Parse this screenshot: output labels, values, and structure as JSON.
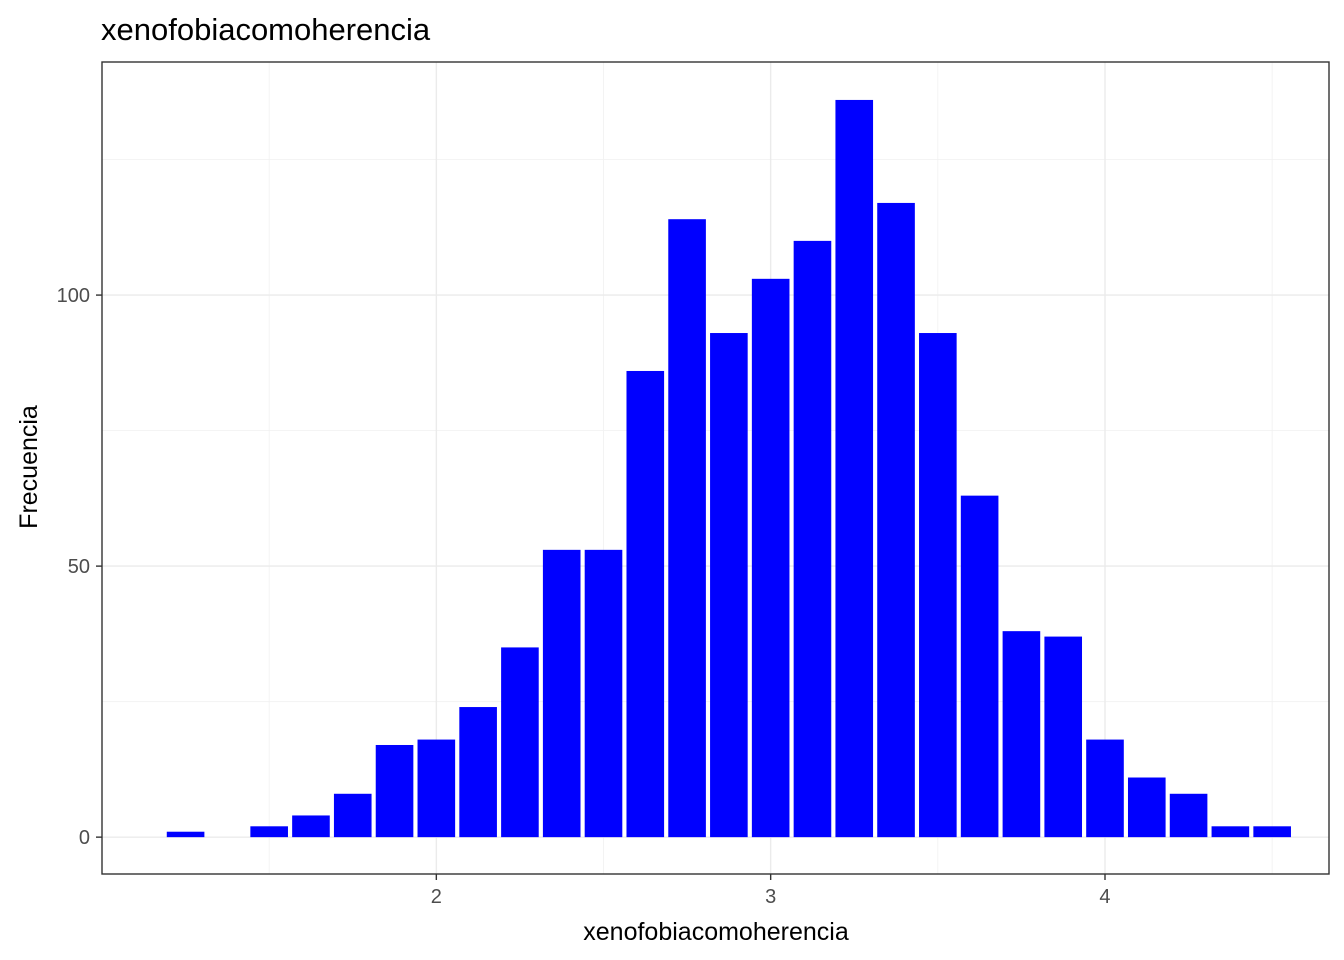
{
  "chart_data": {
    "type": "bar",
    "title": "xenofobiacomoherencia",
    "xlabel": "xenofobiacomoherencia",
    "ylabel": "Frecuencia",
    "bar_color": "#0000ff",
    "grid": true,
    "theme": "bw",
    "x_ticks": [
      2,
      3,
      4
    ],
    "y_ticks": [
      0,
      50,
      100
    ],
    "x": [
      1.25,
      1.5,
      1.625,
      1.75,
      1.875,
      2.0,
      2.125,
      2.25,
      2.375,
      2.5,
      2.625,
      2.75,
      2.875,
      3.0,
      3.125,
      3.25,
      3.375,
      3.5,
      3.625,
      3.75,
      3.875,
      4.0,
      4.125,
      4.25,
      4.375,
      4.5
    ],
    "values": [
      1,
      2,
      4,
      8,
      17,
      18,
      24,
      35,
      53,
      53,
      86,
      114,
      93,
      103,
      110,
      136,
      117,
      93,
      63,
      38,
      37,
      18,
      11,
      8,
      2,
      2
    ],
    "xlim": [
      1.0,
      4.67
    ],
    "ylim": [
      -6.8,
      143
    ]
  }
}
